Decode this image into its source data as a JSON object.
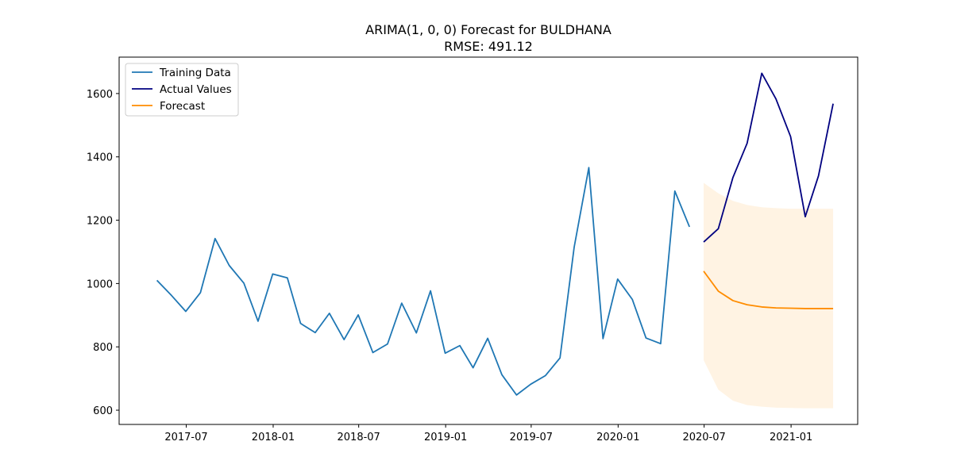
{
  "chart_data": {
    "type": "line",
    "title": "ARIMA(1, 0, 0) Forecast for BULDHANA",
    "subtitle": "RMSE: 491.12",
    "xlabel": "",
    "ylabel": "",
    "xlim": [
      "2017-02-09",
      "2021-05-22"
    ],
    "ylim": [
      555,
      1715
    ],
    "x_tick_labels": [
      "2017-07",
      "2018-01",
      "2018-07",
      "2019-01",
      "2019-07",
      "2020-01",
      "2020-07",
      "2021-01"
    ],
    "x_tick_dates": [
      "2017-07-01",
      "2018-01-01",
      "2018-07-01",
      "2019-01-01",
      "2019-07-01",
      "2020-01-01",
      "2020-07-01",
      "2021-01-01"
    ],
    "y_ticks": [
      600,
      800,
      1000,
      1200,
      1400,
      1600
    ],
    "grid": false,
    "legend_position": "top-left",
    "series": [
      {
        "name": "Training Data",
        "color": "#1f77b4",
        "x": [
          "2017-04-30",
          "2017-05-31",
          "2017-06-30",
          "2017-07-31",
          "2017-08-31",
          "2017-09-30",
          "2017-10-31",
          "2017-11-30",
          "2017-12-31",
          "2018-01-31",
          "2018-02-28",
          "2018-03-31",
          "2018-04-30",
          "2018-05-31",
          "2018-06-30",
          "2018-07-31",
          "2018-08-31",
          "2018-09-30",
          "2018-10-31",
          "2018-11-30",
          "2018-12-31",
          "2019-01-31",
          "2019-02-28",
          "2019-03-31",
          "2019-04-30",
          "2019-05-31",
          "2019-06-30",
          "2019-07-31",
          "2019-08-31",
          "2019-09-30",
          "2019-10-31",
          "2019-11-30",
          "2019-12-31",
          "2020-01-31",
          "2020-02-29",
          "2020-03-31",
          "2020-04-30",
          "2020-05-31"
        ],
        "values": [
          1010,
          962,
          912,
          971,
          1142,
          1057,
          1001,
          881,
          1030,
          1018,
          874,
          845,
          906,
          823,
          901,
          782,
          809,
          938,
          844,
          977,
          780,
          804,
          734,
          827,
          712,
          648,
          682,
          709,
          765,
          1115,
          1366,
          826,
          1014,
          950,
          828,
          810,
          1292,
          1179
        ]
      },
      {
        "name": "Actual Values",
        "color": "#000080",
        "x": [
          "2020-06-30",
          "2020-07-31",
          "2020-08-31",
          "2020-09-30",
          "2020-10-31",
          "2020-11-30",
          "2020-12-31",
          "2021-01-31",
          "2021-02-28",
          "2021-03-31"
        ],
        "values": [
          1131,
          1173,
          1335,
          1443,
          1664,
          1583,
          1464,
          1211,
          1340,
          1568
        ]
      },
      {
        "name": "Forecast",
        "color": "#ff8c00",
        "x": [
          "2020-06-30",
          "2020-07-31",
          "2020-08-31",
          "2020-09-30",
          "2020-10-31",
          "2020-11-30",
          "2020-12-31",
          "2021-01-31",
          "2021-02-28",
          "2021-03-31"
        ],
        "values": [
          1039,
          976,
          946,
          933,
          926,
          923,
          922,
          921,
          921,
          921
        ],
        "interval_lower": [
          758,
          665,
          630,
          616,
          611,
          608,
          607,
          606,
          606,
          606
        ],
        "interval_upper": [
          1318,
          1285,
          1261,
          1248,
          1241,
          1238,
          1236,
          1236,
          1236,
          1236
        ],
        "interval_color": "#fff3e3"
      }
    ]
  }
}
